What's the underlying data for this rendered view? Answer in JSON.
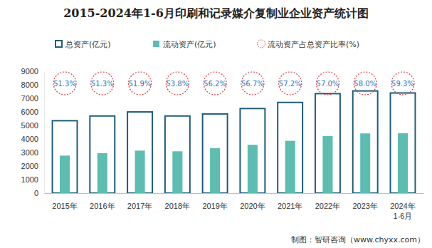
{
  "chart_data": {
    "type": "bar",
    "title": "2015-2024年1-6月印刷和记录媒介复制业企业资产统计图",
    "categories": [
      "2015年",
      "2016年",
      "2017年",
      "2018年",
      "2019年",
      "2020年",
      "2021年",
      "2022年",
      "2023年",
      "2024年\n1-6月"
    ],
    "series": [
      {
        "name": "总资产(亿元)",
        "color": "#1f5c7a",
        "values": [
          5400,
          5750,
          6050,
          5750,
          5900,
          6300,
          6750,
          7400,
          7600,
          7450
        ]
      },
      {
        "name": "流动资产(亿元)",
        "color": "#5cbdb0",
        "values": [
          2770,
          2950,
          3140,
          3090,
          3320,
          3570,
          3860,
          4220,
          4410,
          4420
        ]
      },
      {
        "name": "流动资产占总资产比率(%)",
        "type": "label",
        "marker": "circle",
        "color": "#e0393e",
        "values": [
          51.3,
          51.3,
          51.9,
          53.8,
          56.2,
          56.7,
          57.2,
          57.0,
          58.0,
          59.3
        ],
        "value_labels": [
          "51.3%",
          "51.3%",
          "51.9%",
          "53.8%",
          "56.2%",
          "56.7%",
          "57.2%",
          "57.0%",
          "58.0%",
          "59.3%"
        ]
      }
    ],
    "ylim": [
      0,
      9000
    ],
    "yticks": [
      0,
      1000,
      2000,
      3000,
      4000,
      5000,
      6000,
      7000,
      8000,
      9000
    ],
    "grid": false,
    "legend": "top",
    "annotations": [
      "制图：智研咨询（www.chyxx.com）"
    ]
  }
}
